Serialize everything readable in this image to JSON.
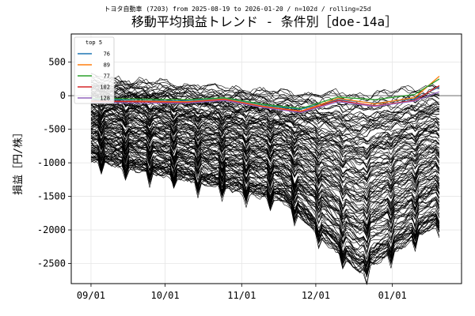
{
  "chart_data": {
    "type": "line",
    "subtitle": "トヨタ自動車 (7203) from 2025-08-19 to 2026-01-20 / n=102d / rolling=25d",
    "title": "移動平均損益トレンド - 条件別［doe-14a］",
    "ylabel": "損益［円/株］",
    "xlabel": "",
    "x_start": "2025-08-19",
    "x_end": "2026-01-20",
    "n_days": 102,
    "xlim": [
      "2025-08-24",
      "2026-01-29"
    ],
    "ylim": [
      -2800,
      920
    ],
    "xticks": [
      {
        "date": "2025-09-01",
        "label": "09/01"
      },
      {
        "date": "2025-10-01",
        "label": "10/01"
      },
      {
        "date": "2025-11-01",
        "label": "11/01"
      },
      {
        "date": "2025-12-01",
        "label": "12/01"
      },
      {
        "date": "2026-01-01",
        "label": "01/01"
      }
    ],
    "yticks": [
      500,
      0,
      -500,
      -1000,
      -1500,
      -2000,
      -2500
    ],
    "grid": true,
    "zero_line": true,
    "legend": {
      "title": "top 5",
      "placement": "top-left",
      "entries": [
        {
          "label": "76",
          "color": "#1f77b4"
        },
        {
          "label": "89",
          "color": "#ff7f0e"
        },
        {
          "label": "77",
          "color": "#2ca02c"
        },
        {
          "label": "102",
          "color": "#d62728"
        },
        {
          "label": "128",
          "color": "#9467bd"
        }
      ]
    },
    "background_series": {
      "count": 150,
      "color": "#000000",
      "y_range_first_day": [
        -950,
        280
      ],
      "y_range_mid_november": [
        -1550,
        60
      ],
      "y_range_mid_december": [
        -2650,
        20
      ],
      "y_range_last_day": [
        -1900,
        180
      ]
    },
    "top_series": [
      {
        "name": "76",
        "color": "#1f77b4",
        "points": [
          [
            "2025-09-01",
            -50
          ],
          [
            "2025-09-20",
            -70
          ],
          [
            "2025-10-10",
            -80
          ],
          [
            "2025-10-25",
            -40
          ],
          [
            "2025-11-10",
            -150
          ],
          [
            "2025-11-25",
            -200
          ],
          [
            "2025-12-10",
            -60
          ],
          [
            "2025-12-25",
            -110
          ],
          [
            "2026-01-10",
            -50
          ],
          [
            "2026-01-20",
            130
          ]
        ]
      },
      {
        "name": "89",
        "color": "#ff7f0e",
        "points": [
          [
            "2025-09-01",
            -90
          ],
          [
            "2025-09-20",
            -80
          ],
          [
            "2025-10-10",
            -90
          ],
          [
            "2025-10-25",
            -50
          ],
          [
            "2025-11-10",
            -160
          ],
          [
            "2025-11-25",
            -230
          ],
          [
            "2025-12-10",
            -40
          ],
          [
            "2025-12-25",
            -120
          ],
          [
            "2026-01-10",
            -30
          ],
          [
            "2026-01-20",
            290
          ]
        ]
      },
      {
        "name": "77",
        "color": "#2ca02c",
        "points": [
          [
            "2025-09-01",
            -40
          ],
          [
            "2025-09-20",
            -50
          ],
          [
            "2025-10-10",
            -60
          ],
          [
            "2025-10-25",
            -30
          ],
          [
            "2025-11-10",
            -130
          ],
          [
            "2025-11-25",
            -190
          ],
          [
            "2025-12-10",
            -20
          ],
          [
            "2025-12-25",
            -60
          ],
          [
            "2026-01-10",
            20
          ],
          [
            "2026-01-20",
            250
          ]
        ]
      },
      {
        "name": "102",
        "color": "#d62728",
        "points": [
          [
            "2025-09-01",
            -80
          ],
          [
            "2025-09-20",
            -90
          ],
          [
            "2025-10-10",
            -100
          ],
          [
            "2025-10-25",
            -60
          ],
          [
            "2025-11-10",
            -170
          ],
          [
            "2025-11-25",
            -240
          ],
          [
            "2025-12-10",
            -70
          ],
          [
            "2025-12-25",
            -150
          ],
          [
            "2026-01-10",
            -70
          ],
          [
            "2026-01-20",
            150
          ]
        ]
      },
      {
        "name": "128",
        "color": "#9467bd",
        "points": [
          [
            "2025-09-01",
            -100
          ],
          [
            "2025-09-20",
            -110
          ],
          [
            "2025-10-10",
            -110
          ],
          [
            "2025-10-25",
            -70
          ],
          [
            "2025-11-10",
            -180
          ],
          [
            "2025-11-25",
            -250
          ],
          [
            "2025-12-10",
            -90
          ],
          [
            "2025-12-25",
            -160
          ],
          [
            "2026-01-10",
            -80
          ],
          [
            "2026-01-20",
            60
          ]
        ]
      }
    ]
  }
}
